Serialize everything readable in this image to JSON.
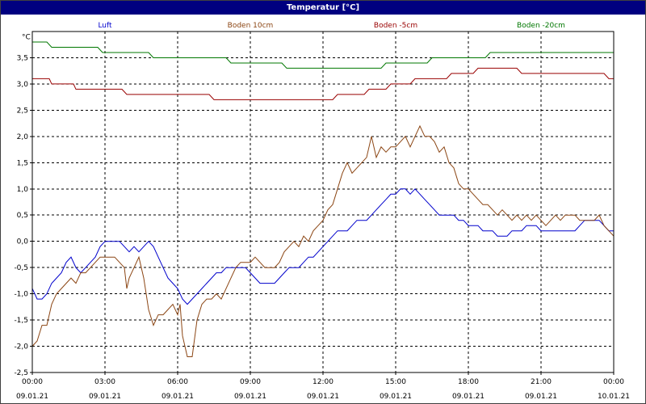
{
  "window": {
    "title": "Temperatur [°C]"
  },
  "chart_data": {
    "type": "line",
    "title": "Temperatur [°C]",
    "ylabel": "°C",
    "xlabel": "",
    "ylim": [
      -2.5,
      4.0
    ],
    "yticks": [
      -2.5,
      -2.0,
      -1.5,
      -1.0,
      -0.5,
      0.0,
      0.5,
      1.0,
      1.5,
      2.0,
      2.5,
      3.0,
      3.5
    ],
    "ytick_labels": [
      "-2,5",
      "-2,0",
      "-1,5",
      "-1,0",
      "-0,5",
      "0,0",
      "0,5",
      "1,0",
      "1,5",
      "2,0",
      "2,5",
      "3,0",
      "3,5"
    ],
    "xlim_hours": [
      0,
      24
    ],
    "xticks": [
      {
        "h": 0,
        "time": "00:00",
        "date": "09.01.21"
      },
      {
        "h": 3,
        "time": "03:00",
        "date": "09.01.21"
      },
      {
        "h": 6,
        "time": "06:00",
        "date": "09.01.21"
      },
      {
        "h": 9,
        "time": "09:00",
        "date": "09.01.21"
      },
      {
        "h": 12,
        "time": "12:00",
        "date": "09.01.21"
      },
      {
        "h": 15,
        "time": "15:00",
        "date": "09.01.21"
      },
      {
        "h": 18,
        "time": "18:00",
        "date": "09.01.21"
      },
      {
        "h": 21,
        "time": "21:00",
        "date": "09.01.21"
      },
      {
        "h": 24,
        "time": "00:00",
        "date": "10.01.21"
      }
    ],
    "grid": true,
    "legend_position": "top",
    "series": [
      {
        "name": "Luft",
        "color": "#0000cc",
        "points": [
          [
            0,
            -0.9
          ],
          [
            0.2,
            -1.1
          ],
          [
            0.4,
            -1.1
          ],
          [
            0.6,
            -1.0
          ],
          [
            0.8,
            -0.8
          ],
          [
            1.0,
            -0.7
          ],
          [
            1.2,
            -0.6
          ],
          [
            1.4,
            -0.4
          ],
          [
            1.6,
            -0.3
          ],
          [
            1.8,
            -0.5
          ],
          [
            2.0,
            -0.6
          ],
          [
            2.2,
            -0.5
          ],
          [
            2.4,
            -0.4
          ],
          [
            2.6,
            -0.3
          ],
          [
            2.8,
            -0.1
          ],
          [
            3.0,
            0.0
          ],
          [
            3.2,
            0.0
          ],
          [
            3.4,
            0.0
          ],
          [
            3.6,
            0.0
          ],
          [
            3.8,
            -0.1
          ],
          [
            4.0,
            -0.2
          ],
          [
            4.2,
            -0.1
          ],
          [
            4.4,
            -0.2
          ],
          [
            4.6,
            -0.1
          ],
          [
            4.8,
            0.0
          ],
          [
            5.0,
            -0.1
          ],
          [
            5.2,
            -0.3
          ],
          [
            5.4,
            -0.5
          ],
          [
            5.6,
            -0.7
          ],
          [
            5.8,
            -0.8
          ],
          [
            6.0,
            -0.9
          ],
          [
            6.2,
            -1.1
          ],
          [
            6.4,
            -1.2
          ],
          [
            6.6,
            -1.1
          ],
          [
            6.8,
            -1.0
          ],
          [
            7.0,
            -0.9
          ],
          [
            7.2,
            -0.8
          ],
          [
            7.4,
            -0.7
          ],
          [
            7.6,
            -0.6
          ],
          [
            7.8,
            -0.6
          ],
          [
            8.0,
            -0.5
          ],
          [
            8.4,
            -0.5
          ],
          [
            8.8,
            -0.5
          ],
          [
            9.0,
            -0.6
          ],
          [
            9.2,
            -0.7
          ],
          [
            9.4,
            -0.8
          ],
          [
            9.6,
            -0.8
          ],
          [
            10.0,
            -0.8
          ],
          [
            10.2,
            -0.7
          ],
          [
            10.4,
            -0.6
          ],
          [
            10.6,
            -0.5
          ],
          [
            11.0,
            -0.5
          ],
          [
            11.2,
            -0.4
          ],
          [
            11.4,
            -0.3
          ],
          [
            11.6,
            -0.3
          ],
          [
            11.8,
            -0.2
          ],
          [
            12.0,
            -0.1
          ],
          [
            12.2,
            0.0
          ],
          [
            12.4,
            0.1
          ],
          [
            12.6,
            0.2
          ],
          [
            13.0,
            0.2
          ],
          [
            13.2,
            0.3
          ],
          [
            13.4,
            0.4
          ],
          [
            13.8,
            0.4
          ],
          [
            14.0,
            0.5
          ],
          [
            14.2,
            0.6
          ],
          [
            14.4,
            0.7
          ],
          [
            14.6,
            0.8
          ],
          [
            14.8,
            0.9
          ],
          [
            15.0,
            0.9
          ],
          [
            15.2,
            1.0
          ],
          [
            15.4,
            1.0
          ],
          [
            15.6,
            0.9
          ],
          [
            15.8,
            1.0
          ],
          [
            16.0,
            0.9
          ],
          [
            16.2,
            0.8
          ],
          [
            16.4,
            0.7
          ],
          [
            16.6,
            0.6
          ],
          [
            16.8,
            0.5
          ],
          [
            17.4,
            0.5
          ],
          [
            17.6,
            0.4
          ],
          [
            17.8,
            0.4
          ],
          [
            18.0,
            0.3
          ],
          [
            18.4,
            0.3
          ],
          [
            18.6,
            0.2
          ],
          [
            19.0,
            0.2
          ],
          [
            19.2,
            0.1
          ],
          [
            19.6,
            0.1
          ],
          [
            19.8,
            0.2
          ],
          [
            20.2,
            0.2
          ],
          [
            20.4,
            0.3
          ],
          [
            20.8,
            0.3
          ],
          [
            21.0,
            0.2
          ],
          [
            22.4,
            0.2
          ],
          [
            22.6,
            0.3
          ],
          [
            22.8,
            0.4
          ],
          [
            23.4,
            0.4
          ],
          [
            23.6,
            0.3
          ],
          [
            23.8,
            0.2
          ],
          [
            24.0,
            0.2
          ]
        ]
      },
      {
        "name": "Boden 10cm",
        "color": "#8b4513",
        "points": [
          [
            0,
            -2.0
          ],
          [
            0.2,
            -1.9
          ],
          [
            0.4,
            -1.6
          ],
          [
            0.6,
            -1.6
          ],
          [
            0.8,
            -1.2
          ],
          [
            1.0,
            -1.0
          ],
          [
            1.2,
            -0.9
          ],
          [
            1.4,
            -0.8
          ],
          [
            1.6,
            -0.7
          ],
          [
            1.8,
            -0.8
          ],
          [
            2.0,
            -0.6
          ],
          [
            2.2,
            -0.6
          ],
          [
            2.4,
            -0.5
          ],
          [
            2.6,
            -0.4
          ],
          [
            2.8,
            -0.3
          ],
          [
            3.0,
            -0.3
          ],
          [
            3.2,
            -0.3
          ],
          [
            3.4,
            -0.3
          ],
          [
            3.6,
            -0.4
          ],
          [
            3.8,
            -0.5
          ],
          [
            3.9,
            -0.9
          ],
          [
            4.0,
            -0.7
          ],
          [
            4.2,
            -0.5
          ],
          [
            4.4,
            -0.3
          ],
          [
            4.6,
            -0.7
          ],
          [
            4.8,
            -1.3
          ],
          [
            5.0,
            -1.6
          ],
          [
            5.2,
            -1.4
          ],
          [
            5.4,
            -1.4
          ],
          [
            5.6,
            -1.3
          ],
          [
            5.8,
            -1.2
          ],
          [
            6.0,
            -1.4
          ],
          [
            6.1,
            -1.2
          ],
          [
            6.2,
            -1.8
          ],
          [
            6.4,
            -2.2
          ],
          [
            6.6,
            -2.2
          ],
          [
            6.8,
            -1.5
          ],
          [
            7.0,
            -1.2
          ],
          [
            7.2,
            -1.1
          ],
          [
            7.4,
            -1.1
          ],
          [
            7.6,
            -1.0
          ],
          [
            7.8,
            -1.1
          ],
          [
            8.0,
            -0.9
          ],
          [
            8.2,
            -0.7
          ],
          [
            8.4,
            -0.5
          ],
          [
            8.6,
            -0.4
          ],
          [
            8.8,
            -0.4
          ],
          [
            9.0,
            -0.4
          ],
          [
            9.2,
            -0.3
          ],
          [
            9.4,
            -0.4
          ],
          [
            9.6,
            -0.5
          ],
          [
            10.0,
            -0.5
          ],
          [
            10.2,
            -0.4
          ],
          [
            10.4,
            -0.2
          ],
          [
            10.6,
            -0.1
          ],
          [
            10.8,
            0.0
          ],
          [
            11.0,
            -0.1
          ],
          [
            11.2,
            0.1
          ],
          [
            11.4,
            0.0
          ],
          [
            11.6,
            0.2
          ],
          [
            11.8,
            0.3
          ],
          [
            12.0,
            0.4
          ],
          [
            12.2,
            0.6
          ],
          [
            12.4,
            0.7
          ],
          [
            12.6,
            1.0
          ],
          [
            12.8,
            1.3
          ],
          [
            13.0,
            1.5
          ],
          [
            13.2,
            1.3
          ],
          [
            13.4,
            1.4
          ],
          [
            13.6,
            1.5
          ],
          [
            13.8,
            1.6
          ],
          [
            14.0,
            2.0
          ],
          [
            14.2,
            1.6
          ],
          [
            14.4,
            1.8
          ],
          [
            14.6,
            1.7
          ],
          [
            14.8,
            1.8
          ],
          [
            15.0,
            1.8
          ],
          [
            15.2,
            1.9
          ],
          [
            15.4,
            2.0
          ],
          [
            15.6,
            1.8
          ],
          [
            15.8,
            2.0
          ],
          [
            16.0,
            2.2
          ],
          [
            16.2,
            2.0
          ],
          [
            16.4,
            2.0
          ],
          [
            16.6,
            1.9
          ],
          [
            16.8,
            1.7
          ],
          [
            17.0,
            1.8
          ],
          [
            17.2,
            1.5
          ],
          [
            17.4,
            1.4
          ],
          [
            17.6,
            1.1
          ],
          [
            17.8,
            1.0
          ],
          [
            18.0,
            1.0
          ],
          [
            18.2,
            0.9
          ],
          [
            18.4,
            0.8
          ],
          [
            18.6,
            0.7
          ],
          [
            18.8,
            0.7
          ],
          [
            19.0,
            0.6
          ],
          [
            19.2,
            0.5
          ],
          [
            19.4,
            0.6
          ],
          [
            19.6,
            0.5
          ],
          [
            19.8,
            0.4
          ],
          [
            20.0,
            0.5
          ],
          [
            20.2,
            0.4
          ],
          [
            20.4,
            0.5
          ],
          [
            20.6,
            0.4
          ],
          [
            20.8,
            0.5
          ],
          [
            21.0,
            0.4
          ],
          [
            21.2,
            0.3
          ],
          [
            21.4,
            0.4
          ],
          [
            21.6,
            0.5
          ],
          [
            21.8,
            0.4
          ],
          [
            22.0,
            0.5
          ],
          [
            22.4,
            0.5
          ],
          [
            22.6,
            0.4
          ],
          [
            23.2,
            0.4
          ],
          [
            23.4,
            0.5
          ],
          [
            23.6,
            0.3
          ],
          [
            23.8,
            0.2
          ],
          [
            24.0,
            0.1
          ]
        ]
      },
      {
        "name": "Boden -5cm",
        "color": "#990000",
        "points": [
          [
            0,
            3.1
          ],
          [
            0.7,
            3.1
          ],
          [
            0.8,
            3.0
          ],
          [
            1.7,
            3.0
          ],
          [
            1.8,
            2.9
          ],
          [
            3.7,
            2.9
          ],
          [
            3.9,
            2.8
          ],
          [
            7.3,
            2.8
          ],
          [
            7.5,
            2.7
          ],
          [
            12.4,
            2.7
          ],
          [
            12.6,
            2.8
          ],
          [
            13.7,
            2.8
          ],
          [
            13.9,
            2.9
          ],
          [
            14.6,
            2.9
          ],
          [
            14.8,
            3.0
          ],
          [
            15.6,
            3.0
          ],
          [
            15.8,
            3.1
          ],
          [
            17.1,
            3.1
          ],
          [
            17.3,
            3.2
          ],
          [
            18.2,
            3.2
          ],
          [
            18.4,
            3.3
          ],
          [
            20.0,
            3.3
          ],
          [
            20.2,
            3.2
          ],
          [
            23.6,
            3.2
          ],
          [
            23.8,
            3.1
          ],
          [
            24.0,
            3.1
          ]
        ]
      },
      {
        "name": "Boden -20cm",
        "color": "#007700",
        "points": [
          [
            0,
            3.8
          ],
          [
            0.6,
            3.8
          ],
          [
            0.8,
            3.7
          ],
          [
            2.7,
            3.7
          ],
          [
            2.9,
            3.6
          ],
          [
            4.8,
            3.6
          ],
          [
            5.0,
            3.5
          ],
          [
            8.0,
            3.5
          ],
          [
            8.2,
            3.4
          ],
          [
            10.3,
            3.4
          ],
          [
            10.5,
            3.3
          ],
          [
            14.4,
            3.3
          ],
          [
            14.6,
            3.4
          ],
          [
            16.3,
            3.4
          ],
          [
            16.5,
            3.5
          ],
          [
            18.7,
            3.5
          ],
          [
            18.9,
            3.6
          ],
          [
            24.0,
            3.6
          ]
        ]
      }
    ]
  }
}
